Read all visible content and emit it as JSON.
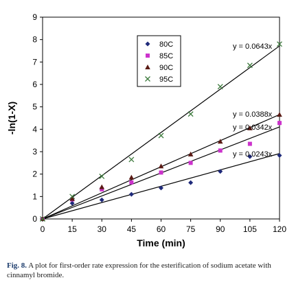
{
  "chart_data": {
    "type": "scatter",
    "xlabel": "Time (min)",
    "ylabel": "-ln(1-X)",
    "xlim": [
      0,
      120
    ],
    "ylim": [
      0,
      9
    ],
    "xticks": [
      "0",
      "15",
      "30",
      "45",
      "60",
      "75",
      "90",
      "105",
      "120"
    ],
    "yticks": [
      "0",
      "1",
      "2",
      "3",
      "4",
      "5",
      "6",
      "7",
      "8",
      "9"
    ],
    "grid": false,
    "legend_position": "top-center",
    "x": [
      0,
      15,
      30,
      45,
      60,
      75,
      90,
      105,
      120
    ],
    "series": [
      {
        "name": "80C",
        "marker": "diamond",
        "color": "#1f2a7a",
        "values": [
          0,
          0.7,
          0.85,
          1.1,
          1.38,
          1.62,
          2.12,
          2.78,
          2.83
        ],
        "slope": 0.0243,
        "equation": "y = 0.0243x"
      },
      {
        "name": "85C",
        "marker": "square",
        "color": "#cc33cc",
        "values": [
          0,
          0.87,
          1.32,
          1.63,
          2.07,
          2.5,
          3.05,
          3.35,
          4.28
        ],
        "slope": 0.0342,
        "equation": "y = 0.0342x"
      },
      {
        "name": "90C",
        "marker": "triangle",
        "color": "#5a1a14",
        "values": [
          0,
          0.9,
          1.42,
          1.85,
          2.35,
          2.88,
          3.45,
          4.05,
          4.65
        ],
        "slope": 0.0388,
        "equation": "y = 0.0388x"
      },
      {
        "name": "95C",
        "marker": "x",
        "color": "#3c7a3c",
        "values": [
          0,
          1.0,
          1.9,
          2.65,
          3.72,
          4.68,
          5.9,
          6.85,
          7.8
        ],
        "slope": 0.0643,
        "equation": "y = 0.0643x"
      }
    ]
  },
  "caption": {
    "label": "Fig. 8.",
    "text": "A plot for first-order rate expression for the esterification of sodium acetate with cinnamyl bromide."
  }
}
